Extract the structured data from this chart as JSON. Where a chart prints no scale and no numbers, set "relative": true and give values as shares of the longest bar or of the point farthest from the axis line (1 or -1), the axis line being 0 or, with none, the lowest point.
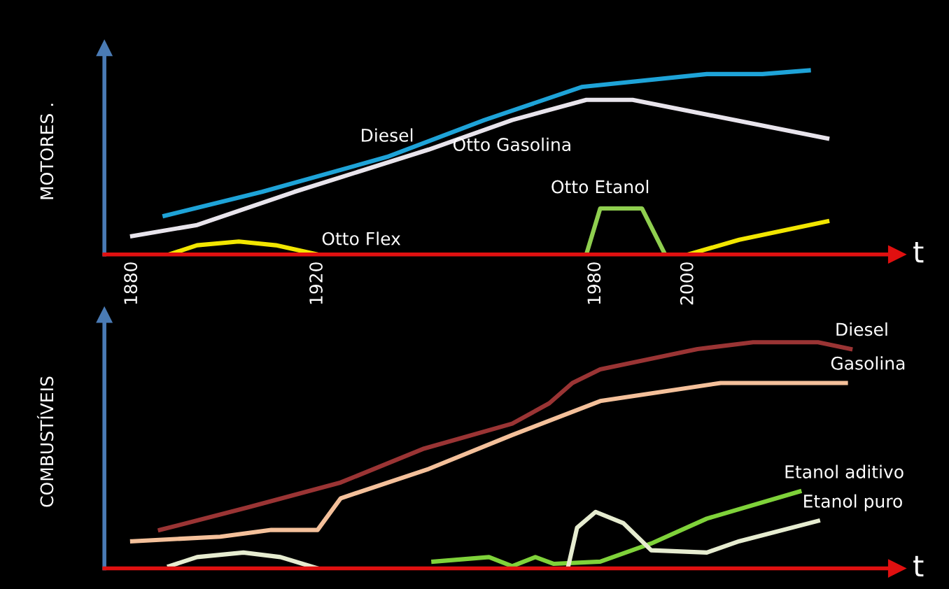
{
  "chart_data": [
    {
      "type": "line",
      "relative": true,
      "ylabel": "MOTORES .",
      "xlabel": "t",
      "xlim": [
        1874,
        2045
      ],
      "xticks": [
        1880,
        1920,
        1980,
        2000
      ],
      "grid": false,
      "legend": false,
      "marker": "none",
      "line_style": "solid",
      "series": [
        {
          "name": "Diesel",
          "color": "#1ea3d8",
          "x": [
            1887,
            1908,
            1935,
            1956,
            1977,
            2004,
            2016,
            2026
          ],
          "values": [
            0.21,
            0.34,
            0.53,
            0.73,
            0.91,
            0.98,
            0.98,
            1.0
          ]
        },
        {
          "name": "Otto Gasolina",
          "color": "#e8e4ec",
          "x": [
            1880,
            1894,
            1915,
            1944,
            1962,
            1978,
            1988,
            2004,
            2030
          ],
          "values": [
            0.1,
            0.16,
            0.34,
            0.57,
            0.73,
            0.84,
            0.84,
            0.76,
            0.63
          ]
        },
        {
          "name": "Otto Flex",
          "color": "#f2e600",
          "x": [
            1888,
            1894,
            1903,
            1911,
            1920,
            1960,
            2000,
            2011,
            2030
          ],
          "values": [
            0,
            0.05,
            0.07,
            0.05,
            0,
            null,
            0,
            0.08,
            0.18
          ]
        },
        {
          "name": "Otto Etanol",
          "color": "#8fcf4f",
          "x": [
            1978,
            1981,
            1990,
            1995
          ],
          "values": [
            0,
            0.25,
            0.25,
            0
          ]
        }
      ]
    },
    {
      "type": "line",
      "relative": true,
      "ylabel": "COMBUSTÍVEIS",
      "xlabel": "t",
      "xlim": [
        1874,
        2045
      ],
      "tick_labels": false,
      "grid": false,
      "legend": false,
      "marker": "none",
      "line_style": "solid",
      "series": [
        {
          "name": "Diesel",
          "color": "#9a3434",
          "x": [
            1886,
            1905,
            1925,
            1943,
            1962,
            1970,
            1975,
            1981,
            2002,
            2014,
            2028,
            2035
          ],
          "values": [
            0.17,
            0.27,
            0.38,
            0.53,
            0.64,
            0.73,
            0.82,
            0.88,
            0.97,
            1.0,
            1.0,
            0.97
          ]
        },
        {
          "name": "Gasolina",
          "color": "#f4c09a",
          "x": [
            1880,
            1899,
            1910,
            1920,
            1925,
            1944,
            1962,
            1981,
            2007,
            2034
          ],
          "values": [
            0.12,
            0.14,
            0.17,
            0.17,
            0.31,
            0.44,
            0.59,
            0.74,
            0.82,
            0.82
          ]
        },
        {
          "name": "Etanol aditivo",
          "color": "#7fd23a",
          "x": [
            1945,
            1957,
            1962,
            1967,
            1971,
            1981,
            1992,
            2004,
            2024
          ],
          "values": [
            0.03,
            0.05,
            0.01,
            0.05,
            0.02,
            0.03,
            0.11,
            0.22,
            0.34
          ]
        },
        {
          "name": "Etanol puro",
          "color": "#e6ecd0",
          "x": [
            1888,
            1894,
            1904,
            1912,
            1920,
            1950,
            1974,
            1976,
            1980,
            1986,
            1992,
            2004,
            2011,
            2028
          ],
          "values": [
            0.01,
            0.05,
            0.07,
            0.05,
            0,
            null,
            0,
            0.18,
            0.25,
            0.2,
            0.08,
            0.07,
            0.12,
            0.21
          ]
        }
      ]
    }
  ]
}
